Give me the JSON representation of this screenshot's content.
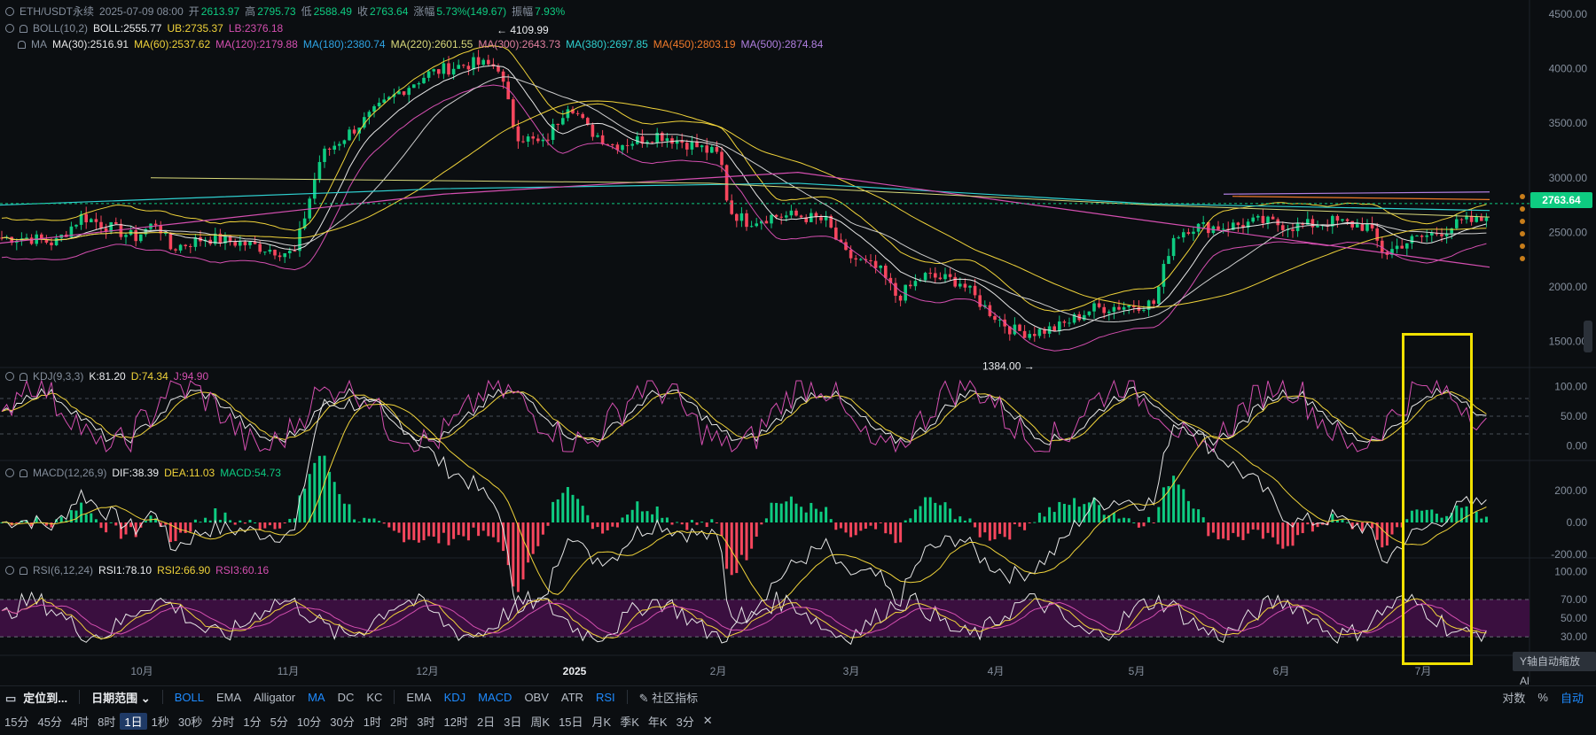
{
  "main_header": {
    "symbol": "ETH/USDT永续",
    "datetime": "2025-07-09 08:00",
    "open_label": "开",
    "open": "2613.97",
    "high_label": "高",
    "high": "2795.73",
    "low_label": "低",
    "low": "2588.49",
    "close_label": "收",
    "close": "2763.64",
    "change_label": "涨幅",
    "change": "5.73%(149.67)",
    "amplitude_label": "振幅",
    "amplitude": "7.93%"
  },
  "boll": {
    "name": "BOLL(10,2)",
    "mid": "BOLL:2555.77",
    "ub": "UB:2735.37",
    "lb": "LB:2376.18"
  },
  "ma": {
    "name": "MA",
    "items": [
      {
        "label": "MA(30):2516.91",
        "color": "#e6e6e6"
      },
      {
        "label": "MA(60):2537.62",
        "color": "#f0d33a"
      },
      {
        "label": "MA(120):2179.88",
        "color": "#d44fb0"
      },
      {
        "label": "MA(180):2380.74",
        "color": "#2ea3e3"
      },
      {
        "label": "MA(220):2601.55",
        "color": "#d9d97a"
      },
      {
        "label": "MA(300):2643.73",
        "color": "#e07f9f"
      },
      {
        "label": "MA(380):2697.85",
        "color": "#2fd0d0"
      },
      {
        "label": "MA(450):2803.19",
        "color": "#f07a2a"
      },
      {
        "label": "MA(500):2874.84",
        "color": "#b07fe0"
      }
    ]
  },
  "kdj": {
    "name": "KDJ(9,3,3)",
    "k": "K:81.20",
    "d": "D:74.34",
    "j": "J:94.90"
  },
  "macd": {
    "name": "MACD(12,26,9)",
    "dif": "DIF:38.39",
    "dea": "DEA:11.03",
    "macd": "MACD:54.73"
  },
  "rsi": {
    "name": "RSI(6,12,24)",
    "r1": "RSI1:78.10",
    "r2": "RSI2:66.90",
    "r3": "RSI3:60.16"
  },
  "price_axis": [
    "4500.00",
    "4000.00",
    "3500.00",
    "3000.00",
    "2500.00",
    "2000.00",
    "1500.00"
  ],
  "current_price": "2763.64",
  "kdj_axis": [
    "100.00",
    "50.00",
    "0.00"
  ],
  "macd_axis": [
    "200.00",
    "0.00",
    "-200.00"
  ],
  "rsi_axis": [
    "100.00",
    "70.00",
    "50.00",
    "30.00"
  ],
  "high_marker": "4109.99",
  "low_marker": "1384.00",
  "time_axis": [
    "10月",
    "11月",
    "12月",
    "2025",
    "2月",
    "3月",
    "4月",
    "5月",
    "6月",
    "7月"
  ],
  "toolbar1": {
    "locate": "定位到...",
    "range": "日期范围",
    "main_ind": [
      "BOLL",
      "EMA",
      "Alligator",
      "MA",
      "DC",
      "KC"
    ],
    "sub_ind": [
      "EMA",
      "KDJ",
      "MACD",
      "OBV",
      "ATR",
      "RSI"
    ],
    "community": "社区指标",
    "right": [
      "对数",
      "%",
      "自动"
    ]
  },
  "intervals": [
    "15分",
    "45分",
    "4时",
    "8时",
    "1日",
    "1秒",
    "30秒",
    "分时",
    "1分",
    "5分",
    "10分",
    "30分",
    "1时",
    "2时",
    "3时",
    "12时",
    "2日",
    "3日",
    "周K",
    "15日",
    "月K",
    "季K",
    "年K",
    "3分"
  ],
  "active_interval": "1日",
  "y_auto": "Y轴自动缩放 Al"
}
